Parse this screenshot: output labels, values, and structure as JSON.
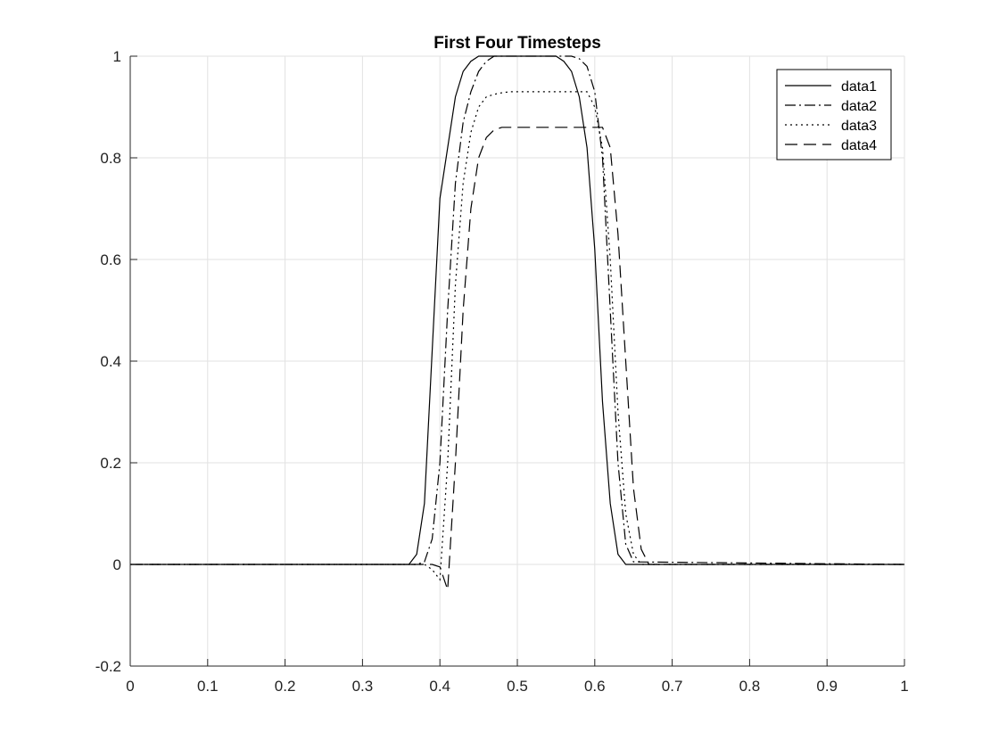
{
  "chart_data": {
    "type": "line",
    "title": "First Four Timesteps",
    "xlabel": "",
    "ylabel": "",
    "xlim": [
      0,
      1
    ],
    "ylim": [
      -0.2,
      1
    ],
    "xticks": [
      0,
      0.1,
      0.2,
      0.3,
      0.4,
      0.5,
      0.6,
      0.7,
      0.8,
      0.9,
      1
    ],
    "xtick_labels": [
      "0",
      "0.1",
      "0.2",
      "0.3",
      "0.4",
      "0.5",
      "0.6",
      "0.7",
      "0.8",
      "0.9",
      "1"
    ],
    "yticks": [
      -0.2,
      0,
      0.2,
      0.4,
      0.6,
      0.8,
      1
    ],
    "ytick_labels": [
      "-0.2",
      "0",
      "0.2",
      "0.4",
      "0.6",
      "0.8",
      "1"
    ],
    "grid": true,
    "legend_position": "top-right",
    "series": [
      {
        "name": "data1",
        "line_style": "solid",
        "color": "#000000",
        "x": [
          0,
          0.36,
          0.37,
          0.38,
          0.39,
          0.4,
          0.41,
          0.42,
          0.43,
          0.44,
          0.45,
          0.46,
          0.47,
          0.48,
          0.49,
          0.5,
          0.51,
          0.52,
          0.53,
          0.54,
          0.55,
          0.56,
          0.57,
          0.58,
          0.59,
          0.6,
          0.61,
          0.62,
          0.63,
          0.64,
          1
        ],
        "y": [
          0,
          0,
          0.02,
          0.12,
          0.42,
          0.72,
          0.82,
          0.92,
          0.97,
          0.99,
          1.0,
          1.0,
          1.0,
          1.0,
          1.0,
          1.0,
          1.0,
          1.0,
          1.0,
          1.0,
          1.0,
          0.99,
          0.97,
          0.92,
          0.82,
          0.62,
          0.32,
          0.12,
          0.02,
          0,
          0
        ]
      },
      {
        "name": "data2",
        "line_style": "dash-dot",
        "color": "#000000",
        "x": [
          0,
          0.37,
          0.38,
          0.39,
          0.4,
          0.41,
          0.42,
          0.43,
          0.44,
          0.45,
          0.46,
          0.47,
          0.48,
          0.49,
          0.5,
          0.51,
          0.52,
          0.53,
          0.54,
          0.55,
          0.56,
          0.57,
          0.58,
          0.59,
          0.6,
          0.61,
          0.62,
          0.63,
          0.64,
          0.65,
          1
        ],
        "y": [
          0,
          0,
          0.005,
          0.05,
          0.2,
          0.5,
          0.75,
          0.87,
          0.93,
          0.97,
          0.99,
          1.0,
          1.0,
          1.0,
          1.0,
          1.0,
          1.0,
          1.0,
          1.0,
          1.0,
          1.0,
          1.0,
          0.995,
          0.98,
          0.93,
          0.8,
          0.5,
          0.2,
          0.04,
          0.005,
          0
        ]
      },
      {
        "name": "data3",
        "line_style": "dotted",
        "color": "#000000",
        "x": [
          0,
          0.38,
          0.39,
          0.4,
          0.41,
          0.42,
          0.43,
          0.44,
          0.45,
          0.46,
          0.47,
          0.48,
          0.49,
          0.5,
          0.55,
          0.59,
          0.6,
          0.61,
          0.62,
          0.63,
          0.64,
          0.65,
          0.66,
          1
        ],
        "y": [
          0,
          0,
          -0.01,
          -0.03,
          0.2,
          0.55,
          0.75,
          0.85,
          0.9,
          0.92,
          0.925,
          0.928,
          0.93,
          0.93,
          0.93,
          0.93,
          0.9,
          0.82,
          0.6,
          0.3,
          0.1,
          0.02,
          0,
          0
        ]
      },
      {
        "name": "data4",
        "line_style": "dashed",
        "color": "#000000",
        "x": [
          0,
          0.39,
          0.4,
          0.41,
          0.42,
          0.43,
          0.44,
          0.45,
          0.46,
          0.47,
          0.48,
          0.5,
          0.55,
          0.6,
          0.61,
          0.62,
          0.63,
          0.64,
          0.65,
          0.66,
          0.67,
          1
        ],
        "y": [
          0,
          0,
          -0.005,
          -0.05,
          0.2,
          0.5,
          0.7,
          0.8,
          0.84,
          0.855,
          0.86,
          0.86,
          0.86,
          0.86,
          0.86,
          0.82,
          0.65,
          0.4,
          0.15,
          0.03,
          0,
          0
        ]
      }
    ]
  }
}
